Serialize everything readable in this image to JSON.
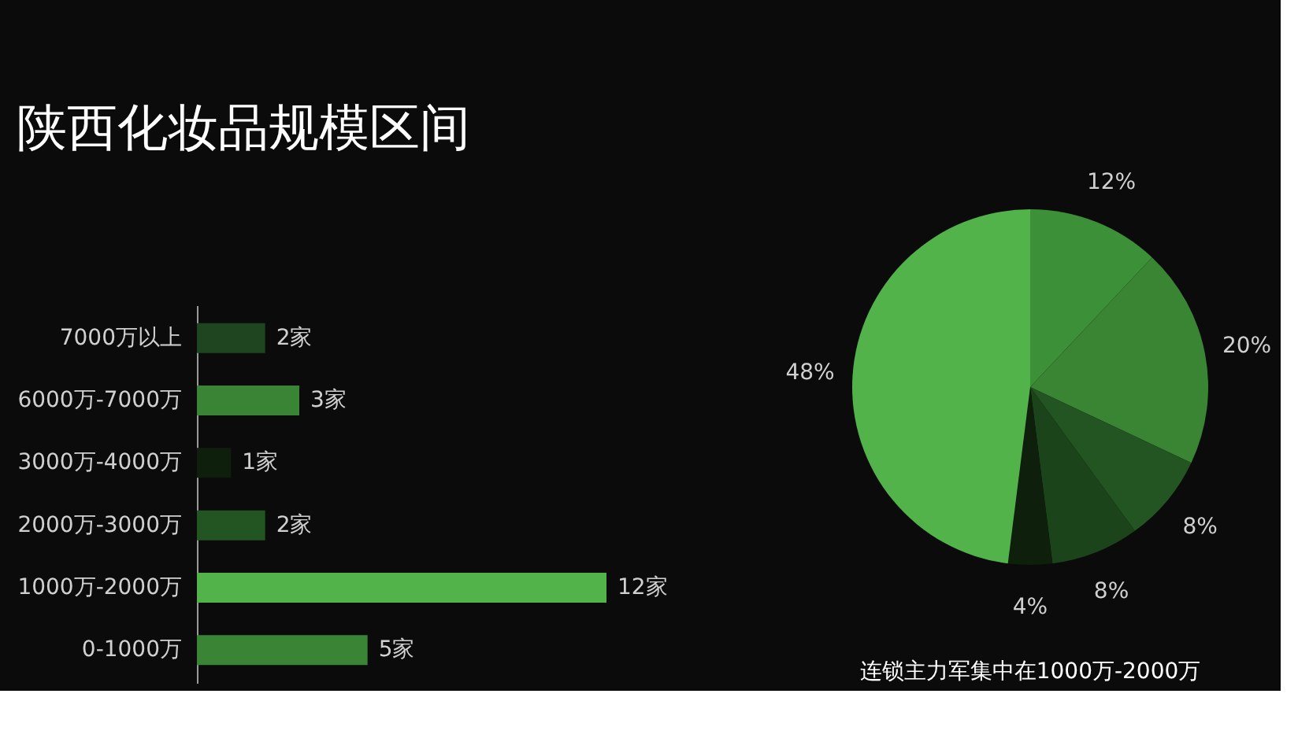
{
  "chart_data": [
    {
      "type": "bar",
      "orientation": "horizontal",
      "title": "陕西化妆品规模区间",
      "categories": [
        "7000万以上",
        "6000万-7000万",
        "3000万-4000万",
        "2000万-3000万",
        "1000万-2000万",
        "0-1000万"
      ],
      "values": [
        2,
        3,
        1,
        2,
        12,
        5
      ],
      "colors": [
        "#1f4420",
        "#3a8535",
        "#0e1f0c",
        "#235522",
        "#52b34a",
        "#3a8535"
      ],
      "value_labels": [
        "2家",
        "3家",
        "1家",
        "2家",
        "12家",
        "5家"
      ],
      "tick_labels": "y",
      "grid": false,
      "legend": false
    },
    {
      "type": "pie",
      "categories": [
        null,
        null,
        null,
        null,
        null,
        null
      ],
      "values": [
        12,
        20,
        8,
        8,
        4,
        48
      ],
      "colors": [
        "#3c9038",
        "#3a8534",
        "#235522",
        "#1c441a",
        "#0e1f0c",
        "#52b34a"
      ],
      "value_labels": [
        "12%",
        "20%",
        "8%",
        "8%",
        "4%",
        "48%"
      ],
      "annotations": [
        "连锁主力军集中在1000万-2000万"
      ],
      "legend": false
    }
  ]
}
